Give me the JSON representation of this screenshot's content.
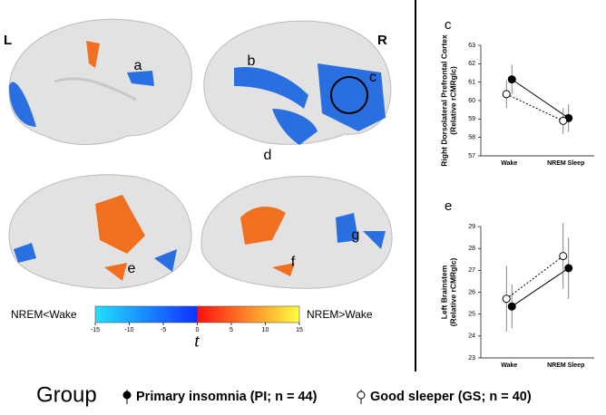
{
  "figure": {
    "hemisphere_left": "L",
    "hemisphere_right": "R",
    "region_labels": [
      "a",
      "b",
      "c",
      "d",
      "e",
      "f",
      "g"
    ],
    "colorbar": {
      "label": "t",
      "left_label": "NREM<Wake",
      "right_label": "NREM>Wake",
      "lim": [
        -15,
        15
      ],
      "ticks": [
        -15,
        -10,
        -5,
        0,
        5,
        10,
        15
      ]
    },
    "legend_title": "Group"
  },
  "chart_data": [
    {
      "type": "line",
      "panel_label": "c",
      "y_label": [
        "Right Dorsolateral Prefrontal Cortex",
        "(Relative rCMRglc)"
      ],
      "categories": [
        "Wake",
        "NREM Sleep"
      ],
      "ylim": [
        57,
        63
      ],
      "yticks": [
        57,
        58,
        59,
        60,
        61,
        62,
        63
      ],
      "series": [
        {
          "name": "Primary insomnia (PI; n = 44)",
          "color": "#000000",
          "values": [
            61.15,
            59.05
          ],
          "errors": [
            0.8,
            0.75
          ]
        },
        {
          "name": "Good sleeper (GS; n = 40)",
          "color": "#ffffff",
          "values": [
            60.35,
            58.9
          ],
          "errors": [
            0.75,
            0.7
          ]
        }
      ]
    },
    {
      "type": "line",
      "panel_label": "e",
      "y_label": [
        "Left Brainstem",
        "(Relative rCMRglc)"
      ],
      "categories": [
        "Wake",
        "NREM Sleep"
      ],
      "ylim": [
        23,
        29
      ],
      "yticks": [
        23,
        24,
        25,
        26,
        27,
        28,
        29
      ],
      "series": [
        {
          "color": "#000000",
          "values": [
            25.35,
            27.1
          ],
          "errors": [
            1.0,
            1.4
          ]
        },
        {
          "color": "#ffffff",
          "values": [
            25.7,
            27.65
          ],
          "errors": [
            1.5,
            1.5
          ]
        }
      ]
    }
  ]
}
